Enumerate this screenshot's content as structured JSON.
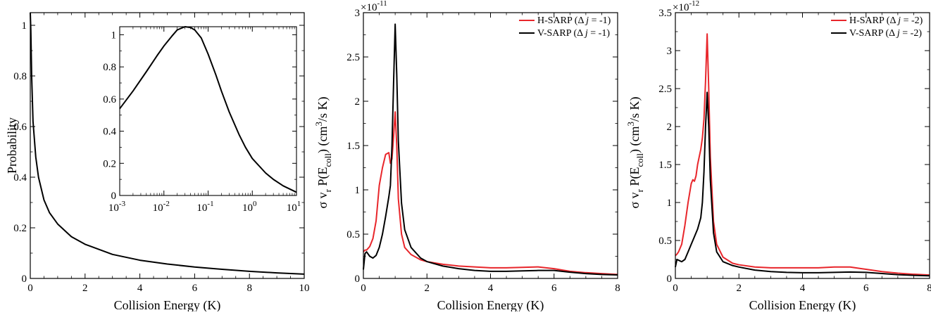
{
  "chart_data": [
    {
      "type": "line",
      "xlabel": "Collision Energy (K)",
      "ylabel": "Probability",
      "xlim": [
        0,
        10
      ],
      "ylim": [
        0,
        1.05
      ],
      "xticks": [
        "0",
        "2",
        "4",
        "6",
        "8",
        "10"
      ],
      "yticks": [
        "0",
        "0.2",
        "0.4",
        "0.6",
        "0.8",
        "1"
      ],
      "series": [
        {
          "name": "",
          "color": "#000000",
          "x": [
            0,
            0.02,
            0.05,
            0.1,
            0.2,
            0.3,
            0.5,
            0.7,
            1.0,
            1.5,
            2.0,
            3.0,
            4.0,
            5.0,
            6.0,
            7.0,
            8.0,
            9.0,
            10.0
          ],
          "y": [
            1.05,
            0.98,
            0.8,
            0.62,
            0.48,
            0.4,
            0.31,
            0.26,
            0.215,
            0.165,
            0.135,
            0.095,
            0.072,
            0.057,
            0.045,
            0.036,
            0.028,
            0.022,
            0.017
          ]
        }
      ],
      "inset": {
        "xscale": "log",
        "xlim": [
          0.001,
          10
        ],
        "ylim": [
          0,
          1.05
        ],
        "xtick_values": [
          0.001,
          0.01,
          0.1,
          1,
          10
        ],
        "xtick_mantissa": [
          "10",
          "10",
          "10",
          "10",
          "10"
        ],
        "xtick_exponents": [
          "-3",
          "-2",
          "-1",
          "0",
          "1"
        ],
        "yticks": [
          "0",
          "0.2",
          "0.4",
          "0.6",
          "0.8",
          "1"
        ],
        "series": [
          {
            "name": "",
            "color": "#000000",
            "x": [
              0.001,
              0.002,
              0.004,
              0.007,
              0.01,
              0.015,
              0.02,
              0.03,
              0.04,
              0.05,
              0.07,
              0.1,
              0.15,
              0.2,
              0.3,
              0.5,
              0.7,
              1.0,
              2.0,
              3.0,
              5.0,
              10.0
            ],
            "y": [
              0.54,
              0.65,
              0.77,
              0.87,
              0.93,
              0.99,
              1.03,
              1.05,
              1.045,
              1.03,
              0.98,
              0.88,
              0.75,
              0.65,
              0.52,
              0.38,
              0.3,
              0.23,
              0.14,
              0.1,
              0.06,
              0.02
            ]
          }
        ]
      }
    },
    {
      "type": "line",
      "xlabel": "Collision Energy (K)",
      "ylabel_parts": [
        "σ v",
        "r",
        " P(E",
        "coll",
        ") (cm",
        "3",
        "/s K)"
      ],
      "scale_base": "×10",
      "scale_exponent": "-11",
      "xlim": [
        0,
        8
      ],
      "ylim": [
        0,
        3
      ],
      "xticks": [
        "0",
        "2",
        "4",
        "6",
        "8"
      ],
      "yticks": [
        "0",
        "0.5",
        "1",
        "1.5",
        "2",
        "2.5",
        "3"
      ],
      "legend_position": "top-right",
      "series": [
        {
          "name_parts": [
            "H-SARP (",
            "Δ",
            " ",
            "j",
            " = -1)"
          ],
          "color": "#e8262b",
          "x": [
            0,
            0.05,
            0.1,
            0.2,
            0.3,
            0.4,
            0.5,
            0.6,
            0.7,
            0.8,
            0.85,
            0.9,
            0.95,
            1.0,
            1.05,
            1.1,
            1.2,
            1.3,
            1.5,
            1.8,
            2.0,
            2.5,
            3.0,
            3.5,
            4.0,
            4.5,
            5.0,
            5.5,
            6.0,
            6.5,
            7.0,
            7.5,
            8.0
          ],
          "y": [
            0.3,
            0.32,
            0.32,
            0.36,
            0.45,
            0.65,
            1.05,
            1.25,
            1.4,
            1.42,
            1.3,
            1.35,
            1.6,
            1.88,
            1.5,
            0.9,
            0.5,
            0.35,
            0.27,
            0.21,
            0.19,
            0.16,
            0.14,
            0.13,
            0.12,
            0.12,
            0.125,
            0.13,
            0.11,
            0.08,
            0.065,
            0.055,
            0.045
          ]
        },
        {
          "name_parts": [
            "V-SARP (",
            "Δ",
            " ",
            "j",
            " = -1)"
          ],
          "color": "#000000",
          "x": [
            0,
            0.05,
            0.1,
            0.2,
            0.3,
            0.4,
            0.5,
            0.6,
            0.7,
            0.8,
            0.85,
            0.9,
            0.95,
            1.0,
            1.05,
            1.1,
            1.2,
            1.3,
            1.5,
            1.8,
            2.0,
            2.5,
            3.0,
            3.5,
            4.0,
            4.5,
            5.0,
            5.5,
            6.0,
            6.5,
            7.0,
            7.5,
            8.0
          ],
          "y": [
            0.1,
            0.28,
            0.3,
            0.25,
            0.23,
            0.26,
            0.35,
            0.5,
            0.7,
            0.92,
            1.05,
            1.5,
            2.2,
            2.87,
            2.3,
            1.55,
            0.85,
            0.55,
            0.35,
            0.23,
            0.19,
            0.14,
            0.11,
            0.09,
            0.08,
            0.08,
            0.085,
            0.09,
            0.09,
            0.07,
            0.055,
            0.045,
            0.04
          ]
        }
      ]
    },
    {
      "type": "line",
      "xlabel": "Collision Energy (K)",
      "ylabel_parts": [
        "σ v",
        "r",
        " P(E",
        "coll",
        ") (cm",
        "3",
        "/s K)"
      ],
      "scale_base": "×10",
      "scale_exponent": "-12",
      "xlim": [
        0,
        8
      ],
      "ylim": [
        0,
        3.5
      ],
      "xticks": [
        "0",
        "2",
        "4",
        "6",
        "8"
      ],
      "yticks": [
        "0",
        "0.5",
        "1",
        "1.5",
        "2",
        "2.5",
        "3",
        "3.5"
      ],
      "legend_position": "top-right",
      "series": [
        {
          "name_parts": [
            "H-SARP (",
            "Δ",
            " ",
            "j",
            " = -2)"
          ],
          "color": "#e8262b",
          "x": [
            0,
            0.05,
            0.1,
            0.2,
            0.3,
            0.4,
            0.5,
            0.55,
            0.6,
            0.65,
            0.7,
            0.75,
            0.8,
            0.85,
            0.9,
            0.95,
            1.0,
            1.05,
            1.1,
            1.2,
            1.3,
            1.5,
            1.8,
            2.0,
            2.5,
            3.0,
            3.5,
            4.0,
            4.5,
            5.0,
            5.5,
            6.0,
            6.5,
            7.0,
            7.5,
            8.0
          ],
          "y": [
            0.3,
            0.32,
            0.35,
            0.45,
            0.7,
            1.0,
            1.25,
            1.3,
            1.28,
            1.35,
            1.5,
            1.6,
            1.7,
            1.85,
            2.1,
            2.6,
            3.22,
            2.5,
            1.6,
            0.75,
            0.45,
            0.28,
            0.2,
            0.18,
            0.15,
            0.14,
            0.14,
            0.14,
            0.14,
            0.15,
            0.15,
            0.12,
            0.09,
            0.07,
            0.055,
            0.045
          ]
        },
        {
          "name_parts": [
            "V-SARP (",
            "Δ",
            " ",
            "j",
            " = -2)"
          ],
          "color": "#000000",
          "x": [
            0,
            0.05,
            0.1,
            0.2,
            0.3,
            0.4,
            0.5,
            0.6,
            0.7,
            0.8,
            0.85,
            0.9,
            0.95,
            1.0,
            1.05,
            1.1,
            1.2,
            1.3,
            1.5,
            1.8,
            2.0,
            2.5,
            3.0,
            3.5,
            4.0,
            4.5,
            5.0,
            5.5,
            6.0,
            6.5,
            7.0,
            7.5,
            8.0
          ],
          "y": [
            0.15,
            0.25,
            0.24,
            0.22,
            0.25,
            0.35,
            0.45,
            0.55,
            0.65,
            0.8,
            1.0,
            1.4,
            2.0,
            2.45,
            2.0,
            1.3,
            0.6,
            0.35,
            0.22,
            0.17,
            0.15,
            0.11,
            0.09,
            0.08,
            0.075,
            0.075,
            0.08,
            0.085,
            0.08,
            0.065,
            0.05,
            0.04,
            0.035
          ]
        }
      ]
    }
  ]
}
